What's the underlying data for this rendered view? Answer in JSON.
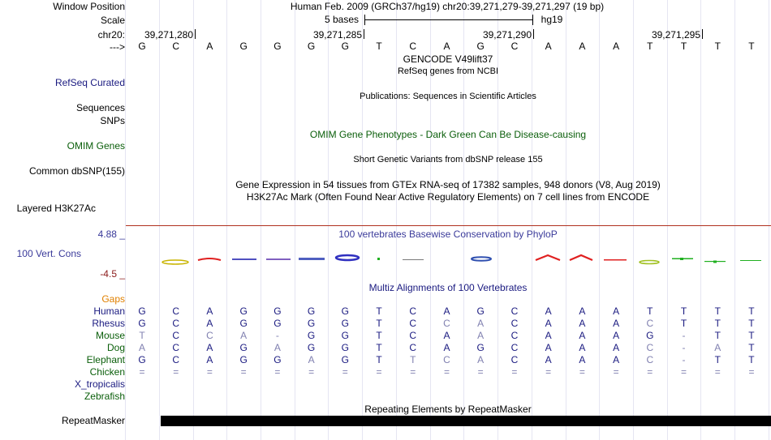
{
  "header": {
    "window_position_label": "Window Position",
    "window_position_value": "Human Feb. 2009 (GRCh37/hg19)   chr20:39,271,279-39,271,297 (19 bp)",
    "scale_label": "Scale",
    "scale_text": "5 bases",
    "scale_db": "hg19",
    "chrom_label": "chr20:",
    "strand_label": "--->",
    "coords": [
      "39,271,280",
      "39,271,285",
      "39,271,290",
      "39,271,295"
    ]
  },
  "sequence": [
    "G",
    "C",
    "A",
    "G",
    "G",
    "G",
    "G",
    "T",
    "C",
    "A",
    "G",
    "C",
    "A",
    "A",
    "A",
    "T",
    "T",
    "T",
    "T"
  ],
  "tracks": {
    "gencode_title": "GENCODE V49lift37",
    "refseq_title": "RefSeq genes from NCBI",
    "refseq_label": "RefSeq Curated",
    "publications_title": "Publications: Sequences in Scientific Articles",
    "sequences_label": "Sequences",
    "snps_label": "SNPs",
    "omim_title": "OMIM Gene Phenotypes - Dark Green Can Be Disease-causing",
    "omim_label": "OMIM Genes",
    "dbsnp_title": "Short Genetic Variants from dbSNP release 155",
    "dbsnp_label": "Common dbSNP(155)",
    "gtex_title": "Gene Expression in 54 tissues from GTEx RNA-seq of 17382 samples, 948 donors (V8, Aug 2019)",
    "h3k27ac_title": "H3K27Ac Mark (Often Found Near Active Regulatory Elements) on 7 cell lines from ENCODE",
    "h3k27ac_label": "Layered H3K27Ac",
    "phylop_title": "100 vertebrates Basewise Conservation by PhyloP",
    "phylop_max": "4.88 _",
    "phylop_min": "-4.5 _",
    "phylop_label": "100 Vert. Cons",
    "multiz_title": "Multiz Alignments of 100 Vertebrates",
    "repeat_title": "Repeating Elements by RepeatMasker",
    "repeat_label": "RepeatMasker"
  },
  "colors": {
    "navy": "#1a1a80",
    "dark_green": "#0a5e0a",
    "orange": "#e08000",
    "dark_red": "#8b1a1a",
    "phylop_blue": "#3a3a9a",
    "gray_base": "#8080b0"
  },
  "species": [
    {
      "name": "Gaps",
      "color": "#e08000",
      "seq": []
    },
    {
      "name": "Human",
      "color": "#1a1a80",
      "seq": [
        "G",
        "C",
        "A",
        "G",
        "G",
        "G",
        "G",
        "T",
        "C",
        "A",
        "G",
        "C",
        "A",
        "A",
        "A",
        "T",
        "T",
        "T",
        "T"
      ],
      "light": []
    },
    {
      "name": "Rhesus",
      "color": "#1a1a80",
      "seq": [
        "G",
        "C",
        "A",
        "G",
        "G",
        "G",
        "G",
        "T",
        "C",
        "C",
        "A",
        "C",
        "A",
        "A",
        "A",
        "C",
        "T",
        "T",
        "T"
      ],
      "light": [
        9,
        10,
        15
      ]
    },
    {
      "name": "Mouse",
      "color": "#0a5e0a",
      "seq": [
        "T",
        "C",
        "C",
        "A",
        "-",
        "G",
        "G",
        "T",
        "C",
        "A",
        "A",
        "C",
        "A",
        "A",
        "A",
        "G",
        "-",
        "T",
        "T"
      ],
      "light": [
        0,
        2,
        3,
        4,
        10,
        16
      ]
    },
    {
      "name": "Dog",
      "color": "#0a5e0a",
      "seq": [
        "A",
        "C",
        "A",
        "G",
        "A",
        "G",
        "G",
        "T",
        "C",
        "A",
        "G",
        "C",
        "A",
        "A",
        "A",
        "C",
        "-",
        "A",
        "T"
      ],
      "light": [
        0,
        4,
        15,
        16,
        17
      ]
    },
    {
      "name": "Elephant",
      "color": "#0a5e0a",
      "seq": [
        "G",
        "C",
        "A",
        "G",
        "G",
        "A",
        "G",
        "T",
        "T",
        "C",
        "A",
        "C",
        "A",
        "A",
        "A",
        "C",
        "-",
        "T",
        "T"
      ],
      "light": [
        5,
        8,
        9,
        10,
        15,
        16
      ]
    },
    {
      "name": "Chicken",
      "color": "#0a5e0a",
      "seq": [
        "=",
        "=",
        "=",
        "=",
        "=",
        "=",
        "=",
        "=",
        "=",
        "=",
        "=",
        "=",
        "=",
        "=",
        "=",
        "=",
        "=",
        "=",
        "="
      ],
      "light": [
        0,
        1,
        2,
        3,
        4,
        5,
        6,
        7,
        8,
        9,
        10,
        11,
        12,
        13,
        14,
        15,
        16,
        17,
        18
      ]
    },
    {
      "name": "X_tropicalis",
      "color": "#1a1a80",
      "seq": []
    },
    {
      "name": "Zebrafish",
      "color": "#0a5e0a",
      "seq": []
    }
  ]
}
